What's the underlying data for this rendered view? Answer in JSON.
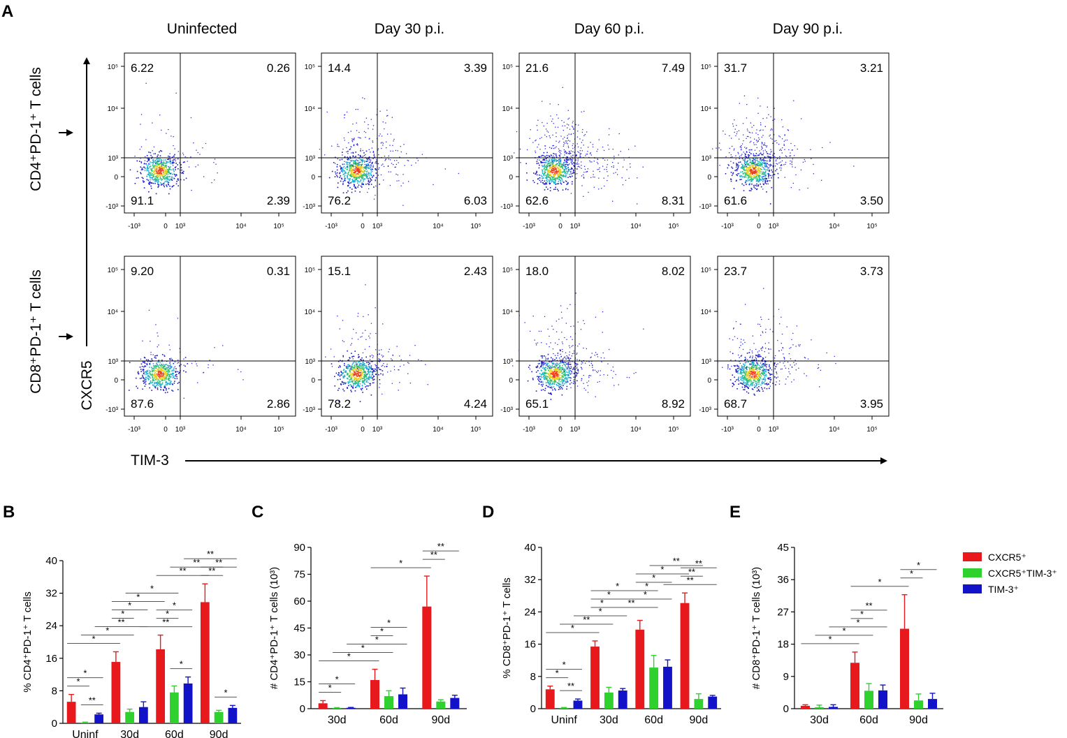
{
  "panel_letters": [
    "A",
    "B",
    "C",
    "D",
    "E"
  ],
  "colors": {
    "red": "#e8191c",
    "green": "#2ed12e",
    "blue": "#1212c8"
  },
  "flow": {
    "column_titles": [
      "Uninfected",
      "Day 30 p.i.",
      "Day 60 p.i.",
      "Day 90 p.i."
    ],
    "row_labels": [
      "CD4⁺PD-1⁺ T cells",
      "CD8⁺PD-1⁺ T cells"
    ],
    "y_axis_label": "CXCR5",
    "x_axis_label": "TIM-3",
    "tick_labels": [
      "-10³",
      "0",
      "10³",
      "10⁴",
      "10⁵"
    ],
    "quadrants": [
      [
        [
          "6.22",
          "0.26",
          "91.1",
          "2.39"
        ],
        [
          "14.4",
          "3.39",
          "76.2",
          "6.03"
        ],
        [
          "21.6",
          "7.49",
          "62.6",
          "8.31"
        ],
        [
          "31.7",
          "3.21",
          "61.6",
          "3.50"
        ]
      ],
      [
        [
          "9.20",
          "0.31",
          "87.6",
          "2.86"
        ],
        [
          "15.1",
          "2.43",
          "78.2",
          "4.24"
        ],
        [
          "18.0",
          "8.02",
          "65.1",
          "8.92"
        ],
        [
          "23.7",
          "3.73",
          "68.7",
          "3.95"
        ]
      ]
    ]
  },
  "legend": [
    "CXCR5⁺",
    "CXCR5⁺TIM-3⁺",
    "TIM-3⁺"
  ],
  "chart_data": [
    {
      "panel": "B",
      "type": "bar",
      "ylabel": "% CD4⁺PD-1⁺ T cells",
      "categories": [
        "Uninf",
        "30d",
        "60d",
        "90d"
      ],
      "ylim": [
        0,
        40
      ],
      "yticks": [
        0,
        8,
        16,
        24,
        32,
        40
      ],
      "series": [
        {
          "name": "CXCR5⁺",
          "values": [
            5.3,
            15.1,
            18.2,
            29.8
          ],
          "errors": [
            1.8,
            2.5,
            3.5,
            4.5
          ]
        },
        {
          "name": "CXCR5⁺TIM-3⁺",
          "values": [
            0.2,
            2.8,
            7.6,
            2.8
          ],
          "errors": [
            0.1,
            0.7,
            1.6,
            0.4
          ]
        },
        {
          "name": "TIM-3⁺",
          "values": [
            2.2,
            4.0,
            9.8,
            3.8
          ],
          "errors": [
            0.3,
            1.3,
            1.6,
            0.6
          ]
        }
      ],
      "significance": [
        {
          "g1": 0,
          "s1": 0,
          "g2": 0,
          "s2": 1,
          "label": "*"
        },
        {
          "g1": 0,
          "s1": 0,
          "g2": 0,
          "s2": 2,
          "label": "*"
        },
        {
          "g1": 0,
          "s1": 1,
          "g2": 0,
          "s2": 2,
          "label": "**"
        },
        {
          "g1": 0,
          "s1": 0,
          "g2": 1,
          "s2": 0,
          "label": "*"
        },
        {
          "g1": 0,
          "s1": 1,
          "g2": 1,
          "s2": 1,
          "label": "*"
        },
        {
          "g1": 0,
          "s1": 2,
          "g2": 1,
          "s2": 2,
          "label": "**"
        },
        {
          "g1": 1,
          "s1": 0,
          "g2": 1,
          "s2": 1,
          "label": "*"
        },
        {
          "g1": 1,
          "s1": 0,
          "g2": 1,
          "s2": 2,
          "label": "*"
        },
        {
          "g1": 1,
          "s1": 0,
          "g2": 2,
          "s2": 0,
          "label": "*"
        },
        {
          "g1": 1,
          "s1": 1,
          "g2": 2,
          "s2": 1,
          "label": "*"
        },
        {
          "g1": 1,
          "s1": 2,
          "g2": 2,
          "s2": 2,
          "label": "**"
        },
        {
          "g1": 2,
          "s1": 0,
          "g2": 2,
          "s2": 1,
          "label": "*"
        },
        {
          "g1": 2,
          "s1": 0,
          "g2": 2,
          "s2": 2,
          "label": "*"
        },
        {
          "g1": 2,
          "s1": 1,
          "g2": 2,
          "s2": 2,
          "label": "*"
        },
        {
          "g1": 2,
          "s1": 0,
          "g2": 3,
          "s2": 0,
          "label": "**"
        },
        {
          "g1": 2,
          "s1": 1,
          "g2": 3,
          "s2": 1,
          "label": "**"
        },
        {
          "g1": 2,
          "s1": 2,
          "g2": 3,
          "s2": 2,
          "label": "**"
        },
        {
          "g1": 3,
          "s1": 0,
          "g2": 3,
          "s2": 1,
          "label": "**"
        },
        {
          "g1": 3,
          "s1": 0,
          "g2": 3,
          "s2": 2,
          "label": "**"
        },
        {
          "g1": 3,
          "s1": 1,
          "g2": 3,
          "s2": 2,
          "label": "*"
        }
      ]
    },
    {
      "panel": "C",
      "type": "bar",
      "ylabel": "# CD4⁺PD-1⁺ T cells (10³)",
      "categories": [
        "30d",
        "60d",
        "90d"
      ],
      "ylim": [
        0,
        90
      ],
      "yticks": [
        0,
        15,
        30,
        45,
        60,
        75,
        90
      ],
      "series": [
        {
          "name": "CXCR5⁺",
          "values": [
            3,
            16,
            57
          ],
          "errors": [
            1.5,
            6,
            17
          ]
        },
        {
          "name": "CXCR5⁺TIM-3⁺",
          "values": [
            0.4,
            7,
            4
          ],
          "errors": [
            0.2,
            3,
            1
          ]
        },
        {
          "name": "TIM-3⁺",
          "values": [
            0.5,
            8,
            6
          ],
          "errors": [
            0.2,
            3.5,
            1.5
          ]
        }
      ],
      "significance": [
        {
          "g1": 0,
          "s1": 0,
          "g2": 0,
          "s2": 1,
          "label": "*"
        },
        {
          "g1": 0,
          "s1": 0,
          "g2": 0,
          "s2": 2,
          "label": "*"
        },
        {
          "g1": 0,
          "s1": 0,
          "g2": 1,
          "s2": 0,
          "label": "*"
        },
        {
          "g1": 0,
          "s1": 1,
          "g2": 1,
          "s2": 1,
          "label": "*"
        },
        {
          "g1": 0,
          "s1": 2,
          "g2": 1,
          "s2": 2,
          "label": "*"
        },
        {
          "g1": 1,
          "s1": 0,
          "g2": 1,
          "s2": 1,
          "label": "*"
        },
        {
          "g1": 1,
          "s1": 0,
          "g2": 1,
          "s2": 2,
          "label": "*"
        },
        {
          "g1": 1,
          "s1": 0,
          "g2": 2,
          "s2": 0,
          "label": "*"
        },
        {
          "g1": 2,
          "s1": 0,
          "g2": 2,
          "s2": 1,
          "label": "**"
        },
        {
          "g1": 2,
          "s1": 0,
          "g2": 2,
          "s2": 2,
          "label": "**"
        }
      ]
    },
    {
      "panel": "D",
      "type": "bar",
      "ylabel": "% CD8⁺PD-1⁺ T cells",
      "categories": [
        "Uninf",
        "30d",
        "60d",
        "90d"
      ],
      "ylim": [
        0,
        40
      ],
      "yticks": [
        0,
        8,
        16,
        24,
        32,
        40
      ],
      "series": [
        {
          "name": "CXCR5⁺",
          "values": [
            4.8,
            15.4,
            19.6,
            26.2
          ],
          "errors": [
            0.8,
            1.4,
            2.3,
            2.5
          ]
        },
        {
          "name": "CXCR5⁺TIM-3⁺",
          "values": [
            0.2,
            4.0,
            10.2,
            2.4
          ],
          "errors": [
            0.1,
            1.3,
            3.0,
            1.3
          ]
        },
        {
          "name": "TIM-3⁺",
          "values": [
            2.0,
            4.5,
            10.4,
            3.0
          ],
          "errors": [
            0.4,
            0.5,
            1.7,
            0.3
          ]
        }
      ],
      "significance": [
        {
          "g1": 0,
          "s1": 0,
          "g2": 0,
          "s2": 1,
          "label": "*"
        },
        {
          "g1": 0,
          "s1": 0,
          "g2": 0,
          "s2": 2,
          "label": "*"
        },
        {
          "g1": 0,
          "s1": 1,
          "g2": 0,
          "s2": 2,
          "label": "**"
        },
        {
          "g1": 0,
          "s1": 0,
          "g2": 1,
          "s2": 0,
          "label": "*"
        },
        {
          "g1": 0,
          "s1": 1,
          "g2": 1,
          "s2": 1,
          "label": "**"
        },
        {
          "g1": 0,
          "s1": 2,
          "g2": 1,
          "s2": 2,
          "label": "*"
        },
        {
          "g1": 1,
          "s1": 0,
          "g2": 1,
          "s2": 1,
          "label": "*"
        },
        {
          "g1": 1,
          "s1": 0,
          "g2": 1,
          "s2": 2,
          "label": "*"
        },
        {
          "g1": 1,
          "s1": 0,
          "g2": 2,
          "s2": 0,
          "label": "*"
        },
        {
          "g1": 1,
          "s1": 1,
          "g2": 2,
          "s2": 1,
          "label": "**"
        },
        {
          "g1": 1,
          "s1": 2,
          "g2": 2,
          "s2": 2,
          "label": "*"
        },
        {
          "g1": 2,
          "s1": 0,
          "g2": 2,
          "s2": 1,
          "label": "*"
        },
        {
          "g1": 2,
          "s1": 0,
          "g2": 2,
          "s2": 2,
          "label": "*"
        },
        {
          "g1": 2,
          "s1": 0,
          "g2": 3,
          "s2": 0,
          "label": "*"
        },
        {
          "g1": 2,
          "s1": 1,
          "g2": 3,
          "s2": 1,
          "label": "**"
        },
        {
          "g1": 2,
          "s1": 2,
          "g2": 3,
          "s2": 2,
          "label": "**"
        },
        {
          "g1": 3,
          "s1": 0,
          "g2": 3,
          "s2": 1,
          "label": "**"
        },
        {
          "g1": 3,
          "s1": 0,
          "g2": 3,
          "s2": 2,
          "label": "**"
        }
      ]
    },
    {
      "panel": "E",
      "type": "bar",
      "ylabel": "# CD8⁺PD-1⁺ T cells (10³)",
      "categories": [
        "30d",
        "60d",
        "90d"
      ],
      "ylim": [
        0,
        45
      ],
      "yticks": [
        0,
        9,
        18,
        27,
        36,
        45
      ],
      "series": [
        {
          "name": "CXCR5⁺",
          "values": [
            0.8,
            12.8,
            22.3
          ],
          "errors": [
            0.3,
            3.0,
            9.5
          ]
        },
        {
          "name": "CXCR5⁺TIM-3⁺",
          "values": [
            0.4,
            5.0,
            2.3
          ],
          "errors": [
            0.6,
            2.0,
            1.8
          ]
        },
        {
          "name": "TIM-3⁺",
          "values": [
            0.5,
            5.1,
            2.7
          ],
          "errors": [
            0.6,
            1.5,
            1.6
          ]
        }
      ],
      "significance": [
        {
          "g1": 0,
          "s1": 0,
          "g2": 1,
          "s2": 0,
          "label": "*"
        },
        {
          "g1": 0,
          "s1": 1,
          "g2": 1,
          "s2": 1,
          "label": "*"
        },
        {
          "g1": 0,
          "s1": 2,
          "g2": 1,
          "s2": 2,
          "label": "*"
        },
        {
          "g1": 1,
          "s1": 0,
          "g2": 1,
          "s2": 1,
          "label": "*"
        },
        {
          "g1": 1,
          "s1": 0,
          "g2": 1,
          "s2": 2,
          "label": "**"
        },
        {
          "g1": 1,
          "s1": 0,
          "g2": 2,
          "s2": 0,
          "label": "*"
        },
        {
          "g1": 2,
          "s1": 0,
          "g2": 2,
          "s2": 1,
          "label": "*"
        },
        {
          "g1": 2,
          "s1": 0,
          "g2": 2,
          "s2": 2,
          "label": "*"
        }
      ]
    }
  ]
}
